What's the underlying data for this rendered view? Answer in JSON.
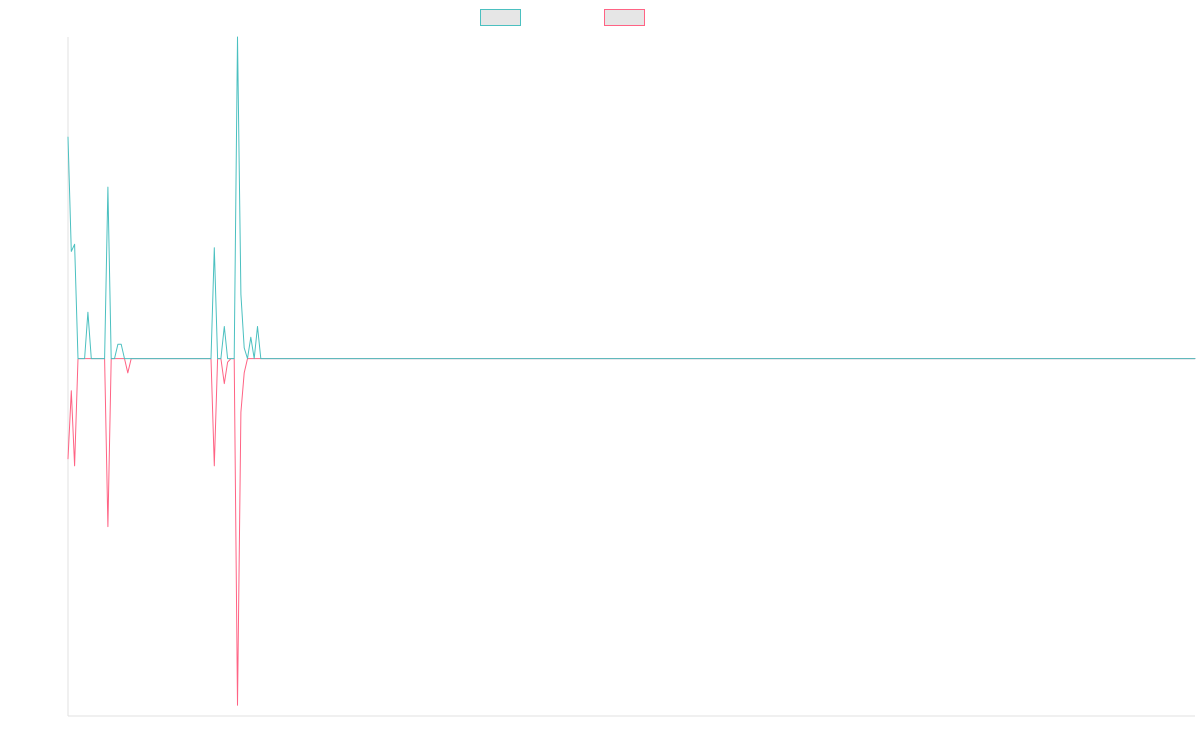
{
  "chart_data": {
    "type": "line",
    "title": "",
    "xlabel": "",
    "ylabel": "",
    "grid": false,
    "legend_position": "top-center",
    "x_count": 340,
    "ylim": [
      -1.0,
      0.9
    ],
    "series": [
      {
        "color": "#4bc0c0",
        "legend_fill": "#e6e6e6",
        "points": [
          [
            0,
            0.62
          ],
          [
            1,
            0.3
          ],
          [
            2,
            0.32
          ],
          [
            3,
            0.0
          ],
          [
            4,
            0.0
          ],
          [
            5,
            0.0
          ],
          [
            6,
            0.13
          ],
          [
            7,
            0.0
          ],
          [
            8,
            0.0
          ],
          [
            9,
            0.0
          ],
          [
            10,
            0.0
          ],
          [
            11,
            0.0
          ],
          [
            12,
            0.48
          ],
          [
            13,
            0.0
          ],
          [
            14,
            0.0
          ],
          [
            15,
            0.04
          ],
          [
            16,
            0.04
          ],
          [
            17,
            0.0
          ],
          [
            18,
            0.0
          ],
          [
            19,
            0.0
          ],
          [
            43,
            0.0
          ],
          [
            44,
            0.31
          ],
          [
            45,
            0.0
          ],
          [
            46,
            0.0
          ],
          [
            47,
            0.09
          ],
          [
            48,
            0.0
          ],
          [
            49,
            0.0
          ],
          [
            50,
            0.0
          ],
          [
            51,
            0.9
          ],
          [
            52,
            0.18
          ],
          [
            53,
            0.03
          ],
          [
            54,
            0.0
          ],
          [
            55,
            0.06
          ],
          [
            56,
            0.0
          ],
          [
            57,
            0.09
          ],
          [
            58,
            0.0
          ],
          [
            59,
            0.0
          ],
          [
            339,
            0.0
          ]
        ]
      },
      {
        "color": "#ff6384",
        "legend_fill": "#e6e6e6",
        "points": [
          [
            0,
            -0.28
          ],
          [
            1,
            -0.09
          ],
          [
            2,
            -0.3
          ],
          [
            3,
            0.0
          ],
          [
            4,
            0.0
          ],
          [
            5,
            0.0
          ],
          [
            6,
            0.0
          ],
          [
            7,
            0.0
          ],
          [
            8,
            0.0
          ],
          [
            9,
            0.0
          ],
          [
            10,
            0.0
          ],
          [
            11,
            0.0
          ],
          [
            12,
            -0.47
          ],
          [
            13,
            0.0
          ],
          [
            14,
            0.0
          ],
          [
            15,
            0.0
          ],
          [
            16,
            0.0
          ],
          [
            17,
            0.0
          ],
          [
            18,
            -0.04
          ],
          [
            19,
            0.0
          ],
          [
            20,
            0.0
          ],
          [
            43,
            0.0
          ],
          [
            44,
            -0.3
          ],
          [
            45,
            0.0
          ],
          [
            46,
            0.0
          ],
          [
            47,
            -0.07
          ],
          [
            48,
            -0.01
          ],
          [
            49,
            0.0
          ],
          [
            50,
            0.0
          ],
          [
            51,
            -0.97
          ],
          [
            52,
            -0.15
          ],
          [
            53,
            -0.04
          ],
          [
            54,
            0.0
          ],
          [
            55,
            0.0
          ],
          [
            56,
            0.0
          ],
          [
            339,
            0.0
          ]
        ]
      }
    ]
  }
}
